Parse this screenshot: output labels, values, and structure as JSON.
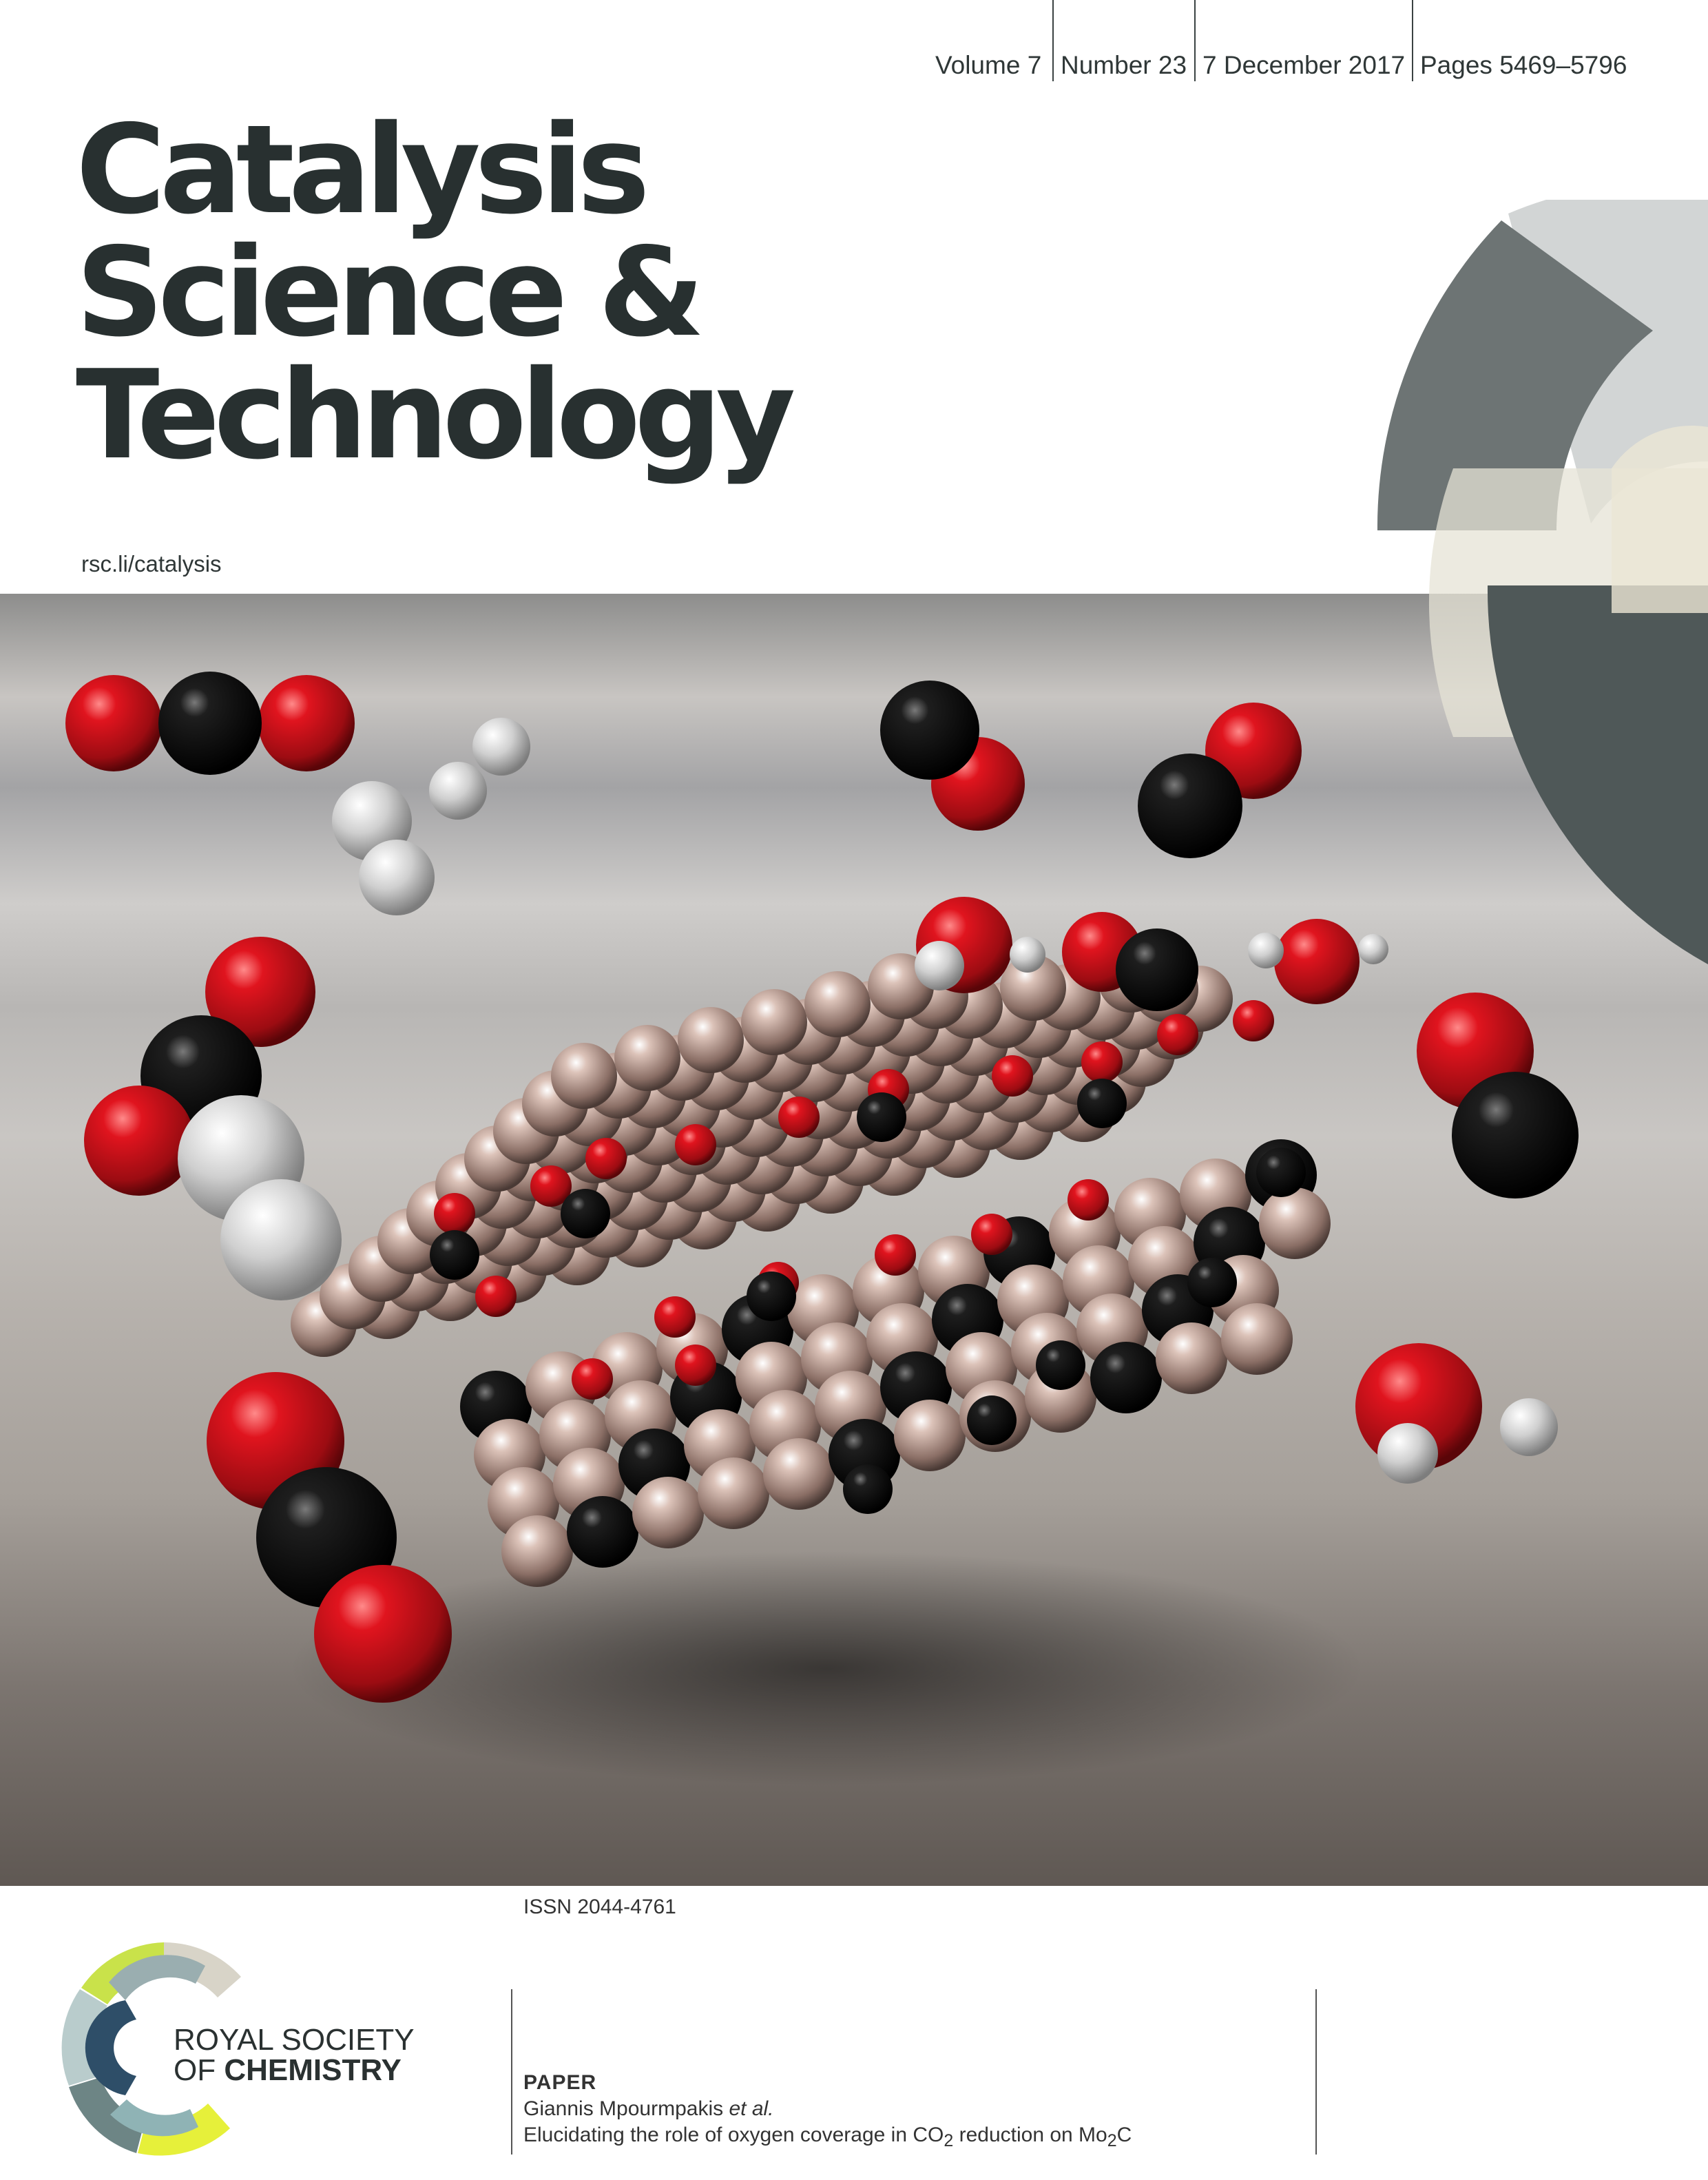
{
  "issue": {
    "volume": "Volume 7",
    "number": "Number 23",
    "date": "7 December 2017",
    "pages": "Pages 5469–5796"
  },
  "journal": {
    "title_lines": [
      "Catalysis",
      "Science &",
      "Technology"
    ],
    "url": "rsc.li/catalysis"
  },
  "issn": "ISSN 2044-4761",
  "article": {
    "type": "PAPER",
    "author": "Giannis Mpourmpakis",
    "author_suffix": "et al.",
    "title_parts": [
      "Elucidating the role of oxygen coverage in CO",
      "2",
      " reduction on Mo",
      "2",
      "C"
    ]
  },
  "publisher": {
    "line1": "ROYAL SOCIETY",
    "line2_prefix": "OF ",
    "line2_bold": "CHEMISTRY"
  },
  "colors": {
    "oxygen": "#c8101c",
    "carbon": "#111111",
    "hydrogen": "#d8d8d8",
    "metal": "#c9aea4",
    "text": "#283030"
  }
}
